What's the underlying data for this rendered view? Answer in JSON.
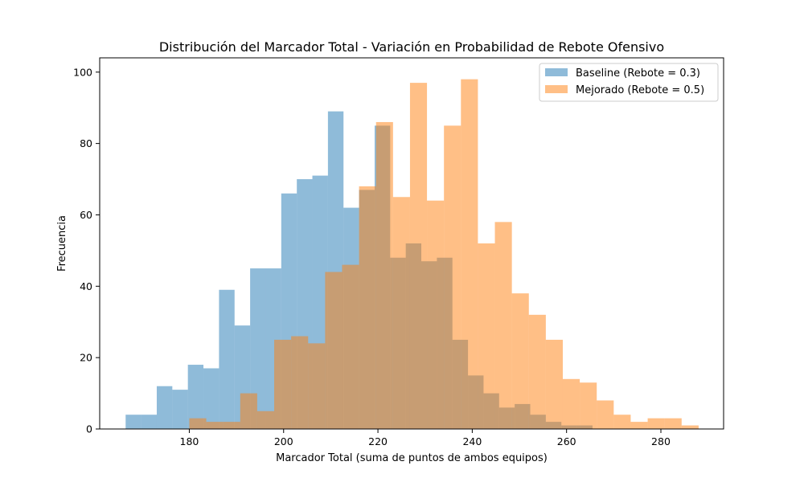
{
  "chart_data": {
    "type": "bar",
    "title": "Distribución del Marcador Total - Variación en Probabilidad de Rebote Ofensivo",
    "xlabel": "Marcador Total (suma de puntos de ambos equipos)",
    "ylabel": "Frecuencia",
    "xlim": [
      161.0,
      293.3
    ],
    "ylim": [
      0,
      104
    ],
    "x_ticks": [
      180,
      200,
      220,
      240,
      260,
      280
    ],
    "y_ticks": [
      0,
      20,
      40,
      60,
      80,
      100
    ],
    "grid": false,
    "legend_position": "top-right",
    "series": [
      {
        "name": "Baseline (Rebote = 0.3)",
        "color": "#1f77b4",
        "opacity": 0.5,
        "bin_edges": [
          166.5,
          169.8,
          173.1,
          176.4,
          179.7,
          183.0,
          186.3,
          189.6,
          192.9,
          196.2,
          199.5,
          202.8,
          206.1,
          209.4,
          212.7,
          216.0,
          219.3,
          222.6,
          225.9,
          229.2,
          232.5,
          235.8,
          239.1,
          242.4,
          245.7,
          249.0,
          252.3,
          255.6,
          258.9,
          262.2,
          265.5
        ],
        "values": [
          4,
          4,
          12,
          11,
          18,
          17,
          39,
          29,
          45,
          45,
          66,
          70,
          71,
          89,
          62,
          67,
          85,
          48,
          52,
          47,
          48,
          25,
          15,
          10,
          6,
          7,
          4,
          2,
          1,
          1
        ]
      },
      {
        "name": "Mejorado (Rebote = 0.5)",
        "color": "#ff7f0e",
        "opacity": 0.5,
        "bin_edges": [
          180.0,
          183.6,
          187.2,
          190.8,
          194.4,
          198.0,
          201.6,
          205.2,
          208.8,
          212.4,
          216.0,
          219.6,
          223.2,
          226.8,
          230.4,
          234.0,
          237.6,
          241.2,
          244.8,
          248.4,
          252.0,
          255.6,
          259.2,
          262.8,
          266.4,
          270.0,
          273.6,
          277.2,
          280.8,
          284.4,
          288.0
        ],
        "values": [
          3,
          2,
          2,
          10,
          5,
          25,
          26,
          24,
          44,
          46,
          68,
          86,
          65,
          97,
          64,
          85,
          98,
          52,
          58,
          38,
          32,
          25,
          14,
          13,
          8,
          4,
          2,
          3,
          3,
          1
        ]
      }
    ]
  }
}
